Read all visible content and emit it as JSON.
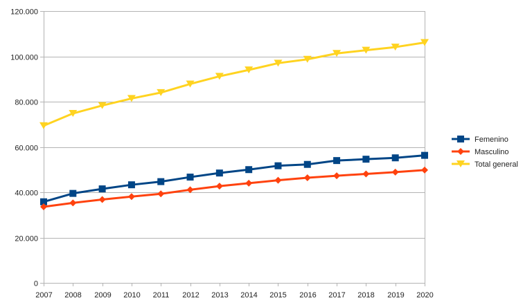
{
  "chart_data": {
    "type": "line",
    "title": "",
    "xlabel": "",
    "ylabel": "",
    "x": [
      "2007",
      "2008",
      "2009",
      "2010",
      "2011",
      "2012",
      "2013",
      "2014",
      "2015",
      "2016",
      "2017",
      "2018",
      "2019",
      "2020"
    ],
    "ylim": [
      0,
      120000
    ],
    "yticks": [
      0,
      20000,
      40000,
      60000,
      80000,
      100000,
      120000
    ],
    "ytick_labels": [
      "0",
      "20.000",
      "40.000",
      "60.000",
      "80.000",
      "100.000",
      "120.000"
    ],
    "grid": "horizontal",
    "legend_position": "right",
    "series": [
      {
        "name": "Femenino",
        "color": "#004586",
        "marker": "square",
        "values": [
          35800,
          39500,
          41500,
          43300,
          44700,
          46700,
          48500,
          50000,
          51700,
          52300,
          54000,
          54600,
          55200,
          56300
        ]
      },
      {
        "name": "Masculino",
        "color": "#ff420e",
        "marker": "diamond",
        "values": [
          33600,
          35300,
          36800,
          38100,
          39300,
          41100,
          42700,
          44000,
          45300,
          46400,
          47300,
          48100,
          48900,
          49800
        ]
      },
      {
        "name": "Total general",
        "color": "#ffd320",
        "marker": "triangle-down",
        "values": [
          69400,
          74800,
          78300,
          81400,
          84000,
          87800,
          91200,
          94000,
          97000,
          98700,
          101300,
          102700,
          104100,
          106100
        ]
      }
    ]
  }
}
